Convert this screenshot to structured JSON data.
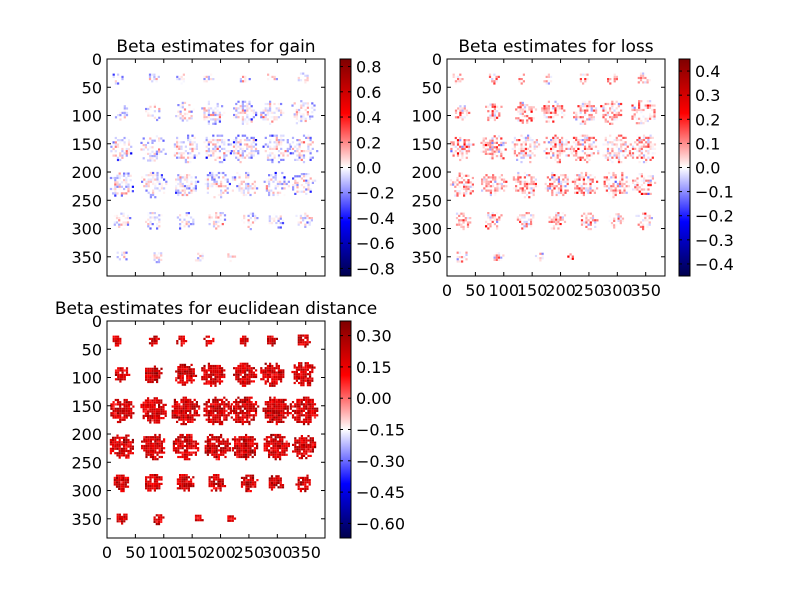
{
  "chart_data": [
    {
      "type": "heatmap",
      "title": "Beta estimates for gain",
      "image_extent": [
        0,
        384,
        384,
        0
      ],
      "x_ticks": [
        0,
        50,
        100,
        150,
        200,
        250,
        300,
        350
      ],
      "y_ticks": [
        0,
        50,
        100,
        150,
        200,
        250,
        300,
        350
      ],
      "x_tick_labels_shown": false,
      "colormap": "seismic",
      "colorbar": {
        "min": -0.86,
        "max": 0.86,
        "ticks": [
          0.8,
          0.6,
          0.4,
          0.2,
          0.0,
          -0.2,
          -0.4,
          -0.6,
          -0.8
        ],
        "tick_labels": [
          "0.8",
          "0.6",
          "0.4",
          "0.2",
          "0.0",
          "−0.2",
          "−0.4",
          "−0.6",
          "−0.8"
        ]
      },
      "slice_rows": [
        {
          "y": 32,
          "xs": [
            16,
            80,
            128,
            176,
            240,
            288,
            344
          ],
          "rs": [
            10,
            10,
            10,
            10,
            10,
            10,
            12
          ]
        },
        {
          "y": 92,
          "xs": [
            24,
            80,
            136,
            184,
            240,
            288,
            344
          ],
          "rs": [
            14,
            17,
            20,
            22,
            22,
            22,
            23
          ]
        },
        {
          "y": 156,
          "xs": [
            24,
            80,
            136,
            192,
            240,
            296,
            344
          ],
          "rs": [
            22,
            25,
            26,
            26,
            26,
            26,
            26
          ]
        },
        {
          "y": 220,
          "xs": [
            24,
            80,
            136,
            192,
            240,
            296,
            344
          ],
          "rs": [
            23,
            24,
            24,
            24,
            24,
            24,
            22
          ]
        },
        {
          "y": 284,
          "xs": [
            24,
            80,
            136,
            192,
            248,
            296,
            344
          ],
          "rs": [
            16,
            17,
            17,
            17,
            16,
            15,
            16
          ]
        },
        {
          "y": 348,
          "xs": [
            24,
            88,
            160,
            216
          ],
          "rs": [
            11,
            10,
            9,
            8
          ]
        }
      ],
      "value_tendency": "mostly near zero, mixed positive and negative (blue at slice edges)"
    },
    {
      "type": "heatmap",
      "title": "Beta estimates for loss",
      "image_extent": [
        0,
        384,
        384,
        0
      ],
      "x_ticks": [
        0,
        50,
        100,
        150,
        200,
        250,
        300,
        350
      ],
      "y_ticks": [
        0,
        50,
        100,
        150,
        200,
        250,
        300,
        350
      ],
      "colormap": "seismic",
      "colorbar": {
        "min": -0.45,
        "max": 0.45,
        "ticks": [
          0.4,
          0.3,
          0.2,
          0.1,
          0.0,
          -0.1,
          -0.2,
          -0.3,
          -0.4
        ],
        "tick_labels": [
          "0.4",
          "0.3",
          "0.2",
          "0.1",
          "0.0",
          "−0.1",
          "−0.2",
          "−0.3",
          "−0.4"
        ]
      },
      "slice_rows": [
        {
          "y": 32,
          "xs": [
            16,
            80,
            128,
            176,
            240,
            288,
            344
          ],
          "rs": [
            10,
            10,
            10,
            10,
            10,
            10,
            12
          ]
        },
        {
          "y": 92,
          "xs": [
            24,
            80,
            136,
            184,
            240,
            288,
            344
          ],
          "rs": [
            14,
            17,
            20,
            22,
            22,
            22,
            23
          ]
        },
        {
          "y": 156,
          "xs": [
            24,
            80,
            136,
            192,
            240,
            296,
            344
          ],
          "rs": [
            22,
            25,
            26,
            26,
            26,
            26,
            26
          ]
        },
        {
          "y": 220,
          "xs": [
            24,
            80,
            136,
            192,
            240,
            296,
            344
          ],
          "rs": [
            23,
            24,
            24,
            24,
            24,
            24,
            22
          ]
        },
        {
          "y": 284,
          "xs": [
            24,
            80,
            136,
            192,
            248,
            296,
            344
          ],
          "rs": [
            16,
            17,
            17,
            17,
            16,
            15,
            16
          ]
        },
        {
          "y": 348,
          "xs": [
            24,
            88,
            160,
            216
          ],
          "rs": [
            11,
            10,
            9,
            8
          ]
        }
      ],
      "value_tendency": "mostly slightly positive (light red), some negative"
    },
    {
      "type": "heatmap",
      "title": "Beta estimates for euclidean distance",
      "image_extent": [
        0,
        384,
        384,
        0
      ],
      "x_ticks": [
        0,
        50,
        100,
        150,
        200,
        250,
        300,
        350
      ],
      "y_ticks": [
        0,
        50,
        100,
        150,
        200,
        250,
        300,
        350
      ],
      "colormap": "seismic",
      "colorbar": {
        "min": -0.67,
        "max": 0.37,
        "ticks": [
          0.3,
          0.15,
          0.0,
          -0.15,
          -0.3,
          -0.45,
          -0.6
        ],
        "tick_labels": [
          "0.30",
          "0.15",
          "0.00",
          "−0.15",
          "−0.30",
          "−0.45",
          "−0.60"
        ]
      },
      "slice_rows": [
        {
          "y": 32,
          "xs": [
            16,
            80,
            128,
            176,
            240,
            288,
            344
          ],
          "rs": [
            10,
            10,
            10,
            10,
            10,
            10,
            12
          ]
        },
        {
          "y": 92,
          "xs": [
            24,
            80,
            136,
            184,
            240,
            288,
            344
          ],
          "rs": [
            14,
            17,
            20,
            22,
            22,
            22,
            23
          ]
        },
        {
          "y": 156,
          "xs": [
            24,
            80,
            136,
            192,
            240,
            296,
            344
          ],
          "rs": [
            22,
            25,
            26,
            26,
            26,
            26,
            26
          ]
        },
        {
          "y": 220,
          "xs": [
            24,
            80,
            136,
            192,
            240,
            296,
            344
          ],
          "rs": [
            23,
            24,
            24,
            24,
            24,
            24,
            22
          ]
        },
        {
          "y": 284,
          "xs": [
            24,
            80,
            136,
            192,
            248,
            296,
            344
          ],
          "rs": [
            16,
            17,
            17,
            17,
            16,
            15,
            16
          ]
        },
        {
          "y": 348,
          "xs": [
            24,
            88,
            160,
            216
          ],
          "rs": [
            11,
            10,
            9,
            8
          ]
        }
      ],
      "value_tendency": "strongly positive (about 0.1 to 0.3), saturated red"
    }
  ]
}
